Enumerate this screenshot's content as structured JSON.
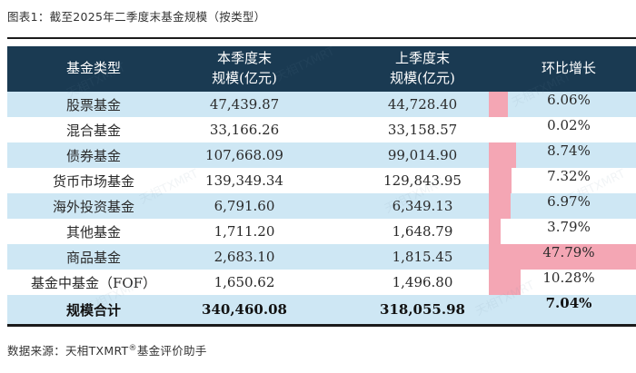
{
  "figure_title": "图表1：截至2025年二季度末基金规模（按类型）",
  "source": {
    "prefix": "数据来源：天相TXMRT",
    "reg_mark": "®",
    "suffix": "基金评价助手"
  },
  "watermark_text": "天相TXMRT",
  "colors": {
    "header_bg": "#1a3a52",
    "row_alt_bg": "#cee7f4",
    "bar_pink": "#f4a6b4",
    "rule": "#1b1b1b"
  },
  "chart_data": {
    "type": "table",
    "title": "图表1：截至2025年二季度末基金规模（按类型）",
    "header": {
      "col1": "基金类型",
      "col2_line1": "本季度末",
      "col2_line2": "规模(亿元)",
      "col3_line1": "上季度末",
      "col3_line2": "规模(亿元)",
      "col4": "环比增长"
    },
    "embedded_bar": {
      "column": "环比增长",
      "scale_max_pct": 47.79,
      "color": "#f4a6b4",
      "note": "bar width proportional to growth pct, 47.79% fills column"
    },
    "rows": [
      {
        "type": "股票基金",
        "current": "47,439.87",
        "previous": "44,728.40",
        "growth": "6.06%",
        "growth_pct": 6.06
      },
      {
        "type": "混合基金",
        "current": "33,166.26",
        "previous": "33,158.57",
        "growth": "0.02%",
        "growth_pct": 0.02
      },
      {
        "type": "债券基金",
        "current": "107,668.09",
        "previous": "99,014.90",
        "growth": "8.74%",
        "growth_pct": 8.74
      },
      {
        "type": "货币市场基金",
        "current": "139,349.34",
        "previous": "129,843.95",
        "growth": "7.32%",
        "growth_pct": 7.32
      },
      {
        "type": "海外投资基金",
        "current": "6,791.60",
        "previous": "6,349.13",
        "growth": "6.97%",
        "growth_pct": 6.97
      },
      {
        "type": "其他基金",
        "current": "1,711.20",
        "previous": "1,648.79",
        "growth": "3.79%",
        "growth_pct": 3.79
      },
      {
        "type": "商品基金",
        "current": "2,683.10",
        "previous": "1,815.45",
        "growth": "47.79%",
        "growth_pct": 47.79
      },
      {
        "type": "基金中基金（FOF）",
        "current": "1,650.62",
        "previous": "1,496.80",
        "growth": "10.28%",
        "growth_pct": 10.28
      },
      {
        "type": "规模合计",
        "current": "340,460.08",
        "previous": "318,055.98",
        "growth": "7.04%",
        "growth_pct": 7.04,
        "is_total": true,
        "show_bar": false
      }
    ]
  }
}
